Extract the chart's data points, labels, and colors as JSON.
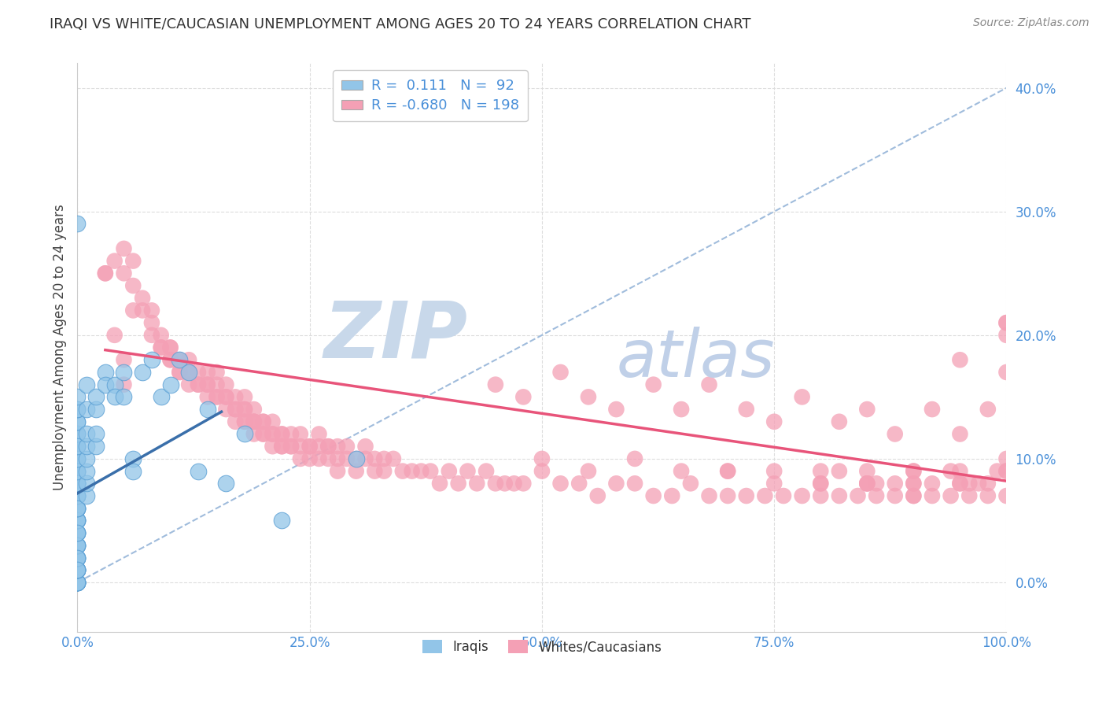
{
  "title": "IRAQI VS WHITE/CAUCASIAN UNEMPLOYMENT AMONG AGES 20 TO 24 YEARS CORRELATION CHART",
  "source": "Source: ZipAtlas.com",
  "ylabel": "Unemployment Among Ages 20 to 24 years",
  "xlim": [
    0.0,
    1.0
  ],
  "ylim": [
    -0.04,
    0.42
  ],
  "yticks": [
    0.0,
    0.1,
    0.2,
    0.3,
    0.4
  ],
  "xticks": [
    0.0,
    0.25,
    0.5,
    0.75,
    1.0
  ],
  "xtick_labels": [
    "0.0%",
    "25.0%",
    "50.0%",
    "75.0%",
    "100.0%"
  ],
  "ytick_labels": [
    "0.0%",
    "10.0%",
    "20.0%",
    "30.0%",
    "40.0%"
  ],
  "iraqi_R": 0.111,
  "iraqi_N": 92,
  "white_R": -0.68,
  "white_N": 198,
  "blue_color": "#92c5e8",
  "pink_color": "#f4a0b5",
  "blue_edge_color": "#5a9fd4",
  "blue_line_color": "#3a6faa",
  "pink_line_color": "#e8547a",
  "ref_line_color": "#a0bcdc",
  "watermark_zip_color": "#c8d8ea",
  "watermark_atlas_color": "#c0d0e8",
  "background_color": "#ffffff",
  "grid_color": "#dddddd",
  "iraqi_x": [
    0.0,
    0.0,
    0.0,
    0.0,
    0.0,
    0.0,
    0.0,
    0.0,
    0.0,
    0.0,
    0.0,
    0.0,
    0.0,
    0.0,
    0.0,
    0.0,
    0.0,
    0.0,
    0.0,
    0.0,
    0.0,
    0.0,
    0.0,
    0.0,
    0.0,
    0.0,
    0.0,
    0.0,
    0.0,
    0.0,
    0.0,
    0.0,
    0.0,
    0.0,
    0.0,
    0.0,
    0.0,
    0.0,
    0.0,
    0.0,
    0.0,
    0.0,
    0.0,
    0.0,
    0.0,
    0.0,
    0.0,
    0.0,
    0.0,
    0.0,
    0.0,
    0.0,
    0.0,
    0.0,
    0.0,
    0.0,
    0.0,
    0.0,
    0.0,
    0.0,
    0.01,
    0.01,
    0.01,
    0.01,
    0.01,
    0.01,
    0.01,
    0.01,
    0.02,
    0.02,
    0.02,
    0.02,
    0.03,
    0.03,
    0.04,
    0.04,
    0.05,
    0.05,
    0.06,
    0.06,
    0.07,
    0.08,
    0.09,
    0.1,
    0.11,
    0.12,
    0.13,
    0.14,
    0.16,
    0.18,
    0.22,
    0.3
  ],
  "iraqi_y": [
    0.0,
    0.0,
    0.0,
    0.0,
    0.0,
    0.0,
    0.0,
    0.0,
    0.01,
    0.01,
    0.01,
    0.01,
    0.01,
    0.02,
    0.02,
    0.02,
    0.03,
    0.03,
    0.03,
    0.04,
    0.04,
    0.04,
    0.05,
    0.05,
    0.05,
    0.06,
    0.06,
    0.07,
    0.07,
    0.07,
    0.08,
    0.08,
    0.08,
    0.09,
    0.09,
    0.1,
    0.1,
    0.11,
    0.11,
    0.12,
    0.12,
    0.13,
    0.13,
    0.14,
    0.14,
    0.15,
    0.05,
    0.06,
    0.07,
    0.08,
    0.03,
    0.02,
    0.01,
    0.04,
    0.06,
    0.08,
    0.09,
    0.1,
    0.11,
    0.29,
    0.07,
    0.08,
    0.09,
    0.1,
    0.11,
    0.12,
    0.14,
    0.16,
    0.11,
    0.12,
    0.14,
    0.15,
    0.17,
    0.16,
    0.16,
    0.15,
    0.15,
    0.17,
    0.1,
    0.09,
    0.17,
    0.18,
    0.15,
    0.16,
    0.18,
    0.17,
    0.09,
    0.14,
    0.08,
    0.12,
    0.05,
    0.1
  ],
  "white_x": [
    0.03,
    0.04,
    0.05,
    0.05,
    0.06,
    0.06,
    0.07,
    0.07,
    0.08,
    0.08,
    0.08,
    0.09,
    0.09,
    0.09,
    0.1,
    0.1,
    0.1,
    0.1,
    0.11,
    0.11,
    0.11,
    0.11,
    0.12,
    0.12,
    0.12,
    0.12,
    0.13,
    0.13,
    0.13,
    0.14,
    0.14,
    0.14,
    0.14,
    0.15,
    0.15,
    0.15,
    0.15,
    0.16,
    0.16,
    0.16,
    0.16,
    0.17,
    0.17,
    0.17,
    0.17,
    0.18,
    0.18,
    0.18,
    0.18,
    0.18,
    0.19,
    0.19,
    0.19,
    0.19,
    0.19,
    0.2,
    0.2,
    0.2,
    0.2,
    0.21,
    0.21,
    0.21,
    0.21,
    0.22,
    0.22,
    0.22,
    0.22,
    0.23,
    0.23,
    0.23,
    0.24,
    0.24,
    0.24,
    0.25,
    0.25,
    0.25,
    0.26,
    0.26,
    0.26,
    0.27,
    0.27,
    0.27,
    0.28,
    0.28,
    0.28,
    0.29,
    0.29,
    0.3,
    0.3,
    0.31,
    0.31,
    0.32,
    0.32,
    0.33,
    0.33,
    0.34,
    0.35,
    0.36,
    0.37,
    0.38,
    0.39,
    0.4,
    0.41,
    0.42,
    0.43,
    0.44,
    0.45,
    0.46,
    0.47,
    0.48,
    0.5,
    0.52,
    0.54,
    0.56,
    0.58,
    0.6,
    0.62,
    0.64,
    0.66,
    0.68,
    0.7,
    0.72,
    0.74,
    0.76,
    0.78,
    0.8,
    0.82,
    0.84,
    0.86,
    0.88,
    0.9,
    0.92,
    0.94,
    0.96,
    0.98,
    1.0,
    0.5,
    0.55,
    0.6,
    0.65,
    0.7,
    0.75,
    0.8,
    0.85,
    0.9,
    0.95,
    1.0,
    0.45,
    0.48,
    0.52,
    0.55,
    0.58,
    0.62,
    0.65,
    0.68,
    0.72,
    0.75,
    0.78,
    0.82,
    0.85,
    0.88,
    0.92,
    0.95,
    0.98,
    1.0,
    0.85,
    0.9,
    0.95,
    1.0,
    0.8,
    0.85,
    0.9,
    0.95,
    1.0,
    0.7,
    0.75,
    0.8,
    0.85,
    0.9,
    0.95,
    0.97,
    0.99,
    1.0,
    0.88,
    0.92,
    0.96,
    1.0,
    0.82,
    0.86,
    0.9,
    0.94,
    0.98,
    1.0,
    0.03,
    0.04,
    0.05,
    0.05,
    0.06
  ],
  "white_y": [
    0.25,
    0.26,
    0.25,
    0.27,
    0.24,
    0.26,
    0.23,
    0.22,
    0.22,
    0.21,
    0.2,
    0.2,
    0.19,
    0.19,
    0.19,
    0.18,
    0.18,
    0.19,
    0.17,
    0.18,
    0.17,
    0.18,
    0.17,
    0.17,
    0.16,
    0.18,
    0.16,
    0.16,
    0.17,
    0.16,
    0.15,
    0.16,
    0.17,
    0.15,
    0.15,
    0.16,
    0.17,
    0.15,
    0.15,
    0.14,
    0.16,
    0.14,
    0.14,
    0.15,
    0.13,
    0.14,
    0.13,
    0.14,
    0.13,
    0.15,
    0.13,
    0.13,
    0.12,
    0.14,
    0.13,
    0.13,
    0.12,
    0.12,
    0.13,
    0.12,
    0.12,
    0.11,
    0.13,
    0.12,
    0.11,
    0.12,
    0.11,
    0.11,
    0.11,
    0.12,
    0.11,
    0.1,
    0.12,
    0.11,
    0.1,
    0.11,
    0.11,
    0.1,
    0.12,
    0.11,
    0.1,
    0.11,
    0.1,
    0.11,
    0.09,
    0.1,
    0.11,
    0.1,
    0.09,
    0.1,
    0.11,
    0.1,
    0.09,
    0.1,
    0.09,
    0.1,
    0.09,
    0.09,
    0.09,
    0.09,
    0.08,
    0.09,
    0.08,
    0.09,
    0.08,
    0.09,
    0.08,
    0.08,
    0.08,
    0.08,
    0.09,
    0.08,
    0.08,
    0.07,
    0.08,
    0.08,
    0.07,
    0.07,
    0.08,
    0.07,
    0.07,
    0.07,
    0.07,
    0.07,
    0.07,
    0.07,
    0.07,
    0.07,
    0.07,
    0.07,
    0.07,
    0.07,
    0.07,
    0.07,
    0.07,
    0.07,
    0.1,
    0.09,
    0.1,
    0.09,
    0.09,
    0.08,
    0.08,
    0.08,
    0.07,
    0.08,
    0.2,
    0.16,
    0.15,
    0.17,
    0.15,
    0.14,
    0.16,
    0.14,
    0.16,
    0.14,
    0.13,
    0.15,
    0.13,
    0.14,
    0.12,
    0.14,
    0.12,
    0.14,
    0.21,
    0.09,
    0.08,
    0.09,
    0.17,
    0.09,
    0.08,
    0.09,
    0.18,
    0.1,
    0.09,
    0.09,
    0.08,
    0.08,
    0.08,
    0.08,
    0.08,
    0.09,
    0.21,
    0.08,
    0.08,
    0.08,
    0.09,
    0.09,
    0.08,
    0.09,
    0.09,
    0.08,
    0.09,
    0.25,
    0.2,
    0.18,
    0.16,
    0.22
  ],
  "blue_trend_x": [
    0.0,
    0.155
  ],
  "blue_trend_y": [
    0.072,
    0.138
  ],
  "pink_trend_x": [
    0.03,
    1.0
  ],
  "pink_trend_y": [
    0.188,
    0.082
  ],
  "ref_line_x": [
    0.0,
    1.0
  ],
  "ref_line_y": [
    0.0,
    0.4
  ]
}
